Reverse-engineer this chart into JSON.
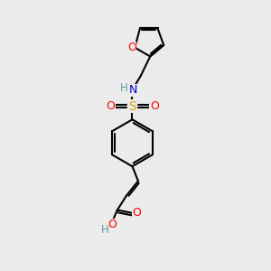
{
  "background_color": "#ebebeb",
  "line_color": "#000000",
  "bond_width": 1.5,
  "atom_colors": {
    "O": "#ff0000",
    "N": "#0000cd",
    "S": "#ccaa00",
    "H": "#5f9ea0",
    "C": "#000000"
  },
  "font_size": 9
}
